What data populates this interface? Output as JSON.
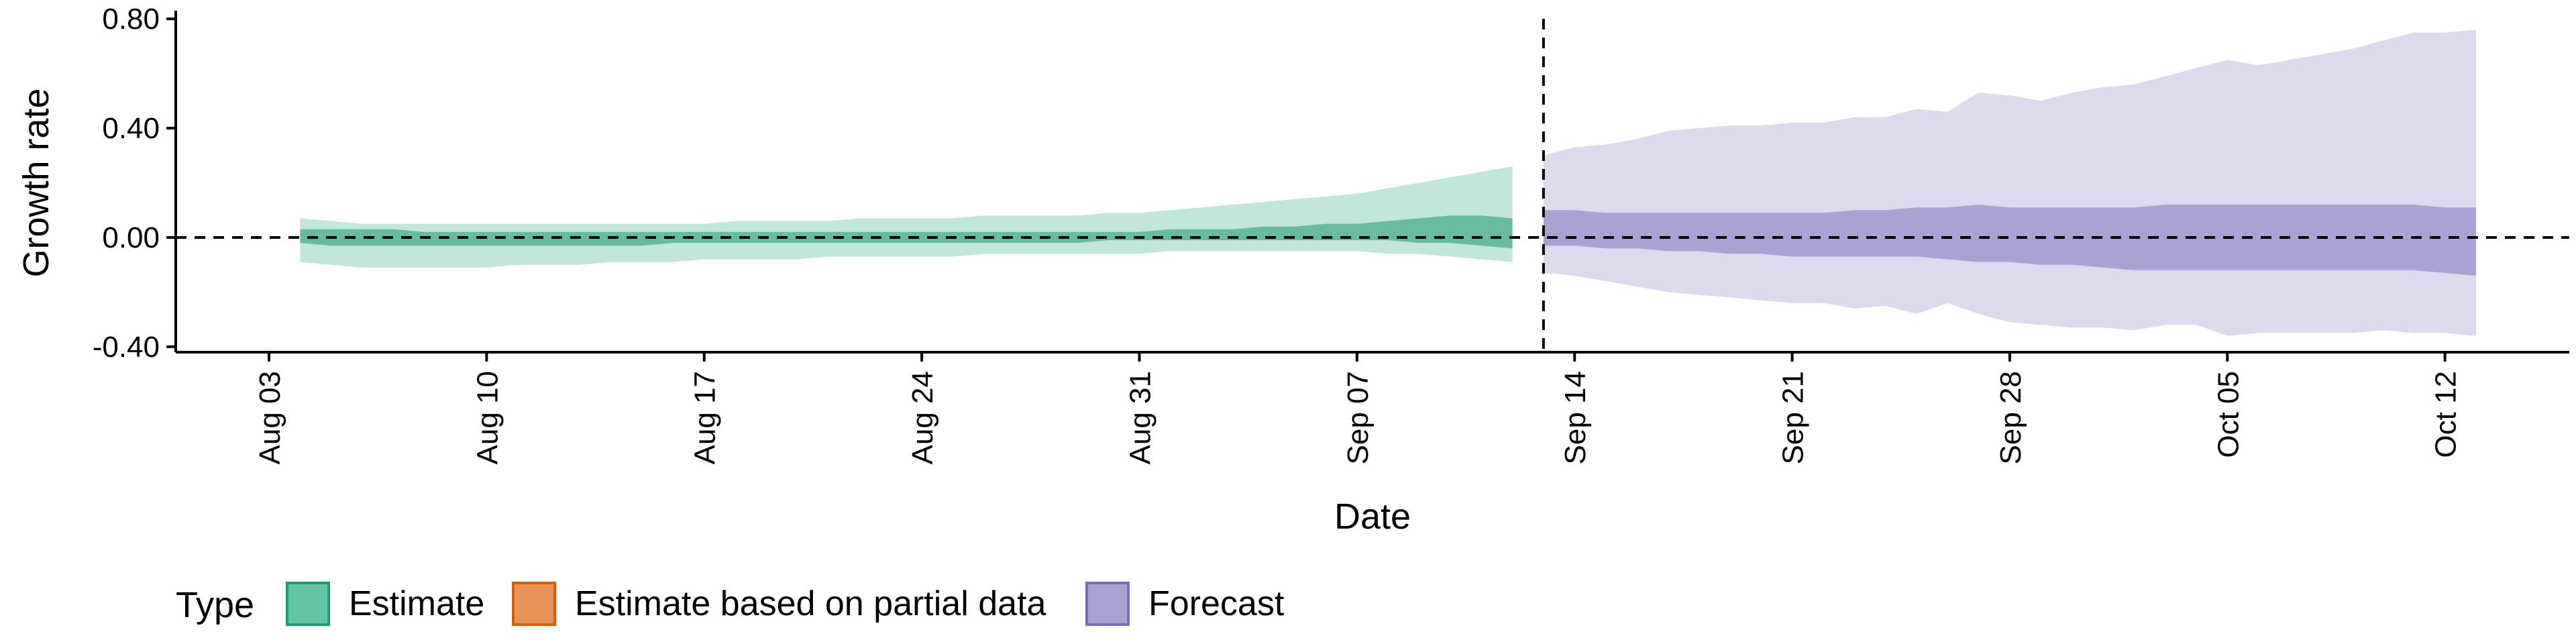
{
  "chart_data": {
    "type": "area",
    "xlabel": "Date",
    "ylabel": "Growth rate",
    "ylim": [
      -0.42,
      0.82
    ],
    "y_ticks": [
      -0.4,
      0.0,
      0.4,
      0.8
    ],
    "y_tick_labels": [
      "-0.40",
      "0.00",
      "0.40",
      "0.80"
    ],
    "x_ticks": [
      "2020-08-03",
      "2020-08-10",
      "2020-08-17",
      "2020-08-24",
      "2020-08-31",
      "2020-09-07",
      "2020-09-14",
      "2020-09-21",
      "2020-09-28",
      "2020-10-05",
      "2020-10-12"
    ],
    "x_tick_labels": [
      "Aug 03",
      "Aug 10",
      "Aug 17",
      "Aug 24",
      "Aug 31",
      "Sep 07",
      "Sep 14",
      "Sep 21",
      "Sep 28",
      "Oct 05",
      "Oct 12"
    ],
    "xlim": [
      "2020-07-31",
      "2020-10-16"
    ],
    "forecast_date": "2020-09-13",
    "reference_line_y": 0.0,
    "grid": false,
    "legend_position": "bottom",
    "legend_title": "Type",
    "legend": [
      {
        "label": "Estimate",
        "fill": "#66c2a5",
        "stroke": "#1b9e77"
      },
      {
        "label": "Estimate based on partial data",
        "fill": "#e8935a",
        "stroke": "#d95f02"
      },
      {
        "label": "Forecast",
        "fill": "#a8a2d3",
        "stroke": "#7570b3"
      }
    ],
    "series": [
      {
        "name": "Estimate",
        "color": "#1b9e77",
        "dates": [
          "2020-08-04",
          "2020-08-05",
          "2020-08-06",
          "2020-08-07",
          "2020-08-08",
          "2020-08-09",
          "2020-08-10",
          "2020-08-11",
          "2020-08-12",
          "2020-08-13",
          "2020-08-14",
          "2020-08-15",
          "2020-08-16",
          "2020-08-17",
          "2020-08-18",
          "2020-08-19",
          "2020-08-20",
          "2020-08-21",
          "2020-08-22",
          "2020-08-23",
          "2020-08-24",
          "2020-08-25",
          "2020-08-26",
          "2020-08-27",
          "2020-08-28",
          "2020-08-29",
          "2020-08-30",
          "2020-08-31",
          "2020-09-01",
          "2020-09-02",
          "2020-09-03",
          "2020-09-04",
          "2020-09-05",
          "2020-09-06",
          "2020-09-07",
          "2020-09-08",
          "2020-09-09",
          "2020-09-10",
          "2020-09-11",
          "2020-09-12"
        ],
        "lower_90": [
          -0.09,
          -0.1,
          -0.11,
          -0.11,
          -0.11,
          -0.11,
          -0.11,
          -0.1,
          -0.1,
          -0.1,
          -0.09,
          -0.09,
          -0.09,
          -0.08,
          -0.08,
          -0.08,
          -0.08,
          -0.07,
          -0.07,
          -0.07,
          -0.07,
          -0.07,
          -0.06,
          -0.06,
          -0.06,
          -0.06,
          -0.06,
          -0.06,
          -0.05,
          -0.05,
          -0.05,
          -0.05,
          -0.05,
          -0.05,
          -0.05,
          -0.06,
          -0.06,
          -0.07,
          -0.08,
          -0.09
        ],
        "upper_90": [
          0.07,
          0.06,
          0.05,
          0.05,
          0.05,
          0.05,
          0.05,
          0.05,
          0.05,
          0.05,
          0.05,
          0.05,
          0.05,
          0.05,
          0.06,
          0.06,
          0.06,
          0.06,
          0.07,
          0.07,
          0.07,
          0.07,
          0.08,
          0.08,
          0.08,
          0.08,
          0.09,
          0.09,
          0.1,
          0.11,
          0.12,
          0.13,
          0.14,
          0.15,
          0.16,
          0.18,
          0.2,
          0.22,
          0.24,
          0.26
        ],
        "lower_50": [
          -0.02,
          -0.03,
          -0.03,
          -0.03,
          -0.03,
          -0.03,
          -0.03,
          -0.03,
          -0.03,
          -0.03,
          -0.03,
          -0.03,
          -0.02,
          -0.02,
          -0.02,
          -0.02,
          -0.02,
          -0.02,
          -0.02,
          -0.02,
          -0.02,
          -0.02,
          -0.02,
          -0.02,
          -0.02,
          -0.02,
          -0.01,
          -0.01,
          -0.01,
          -0.01,
          -0.01,
          -0.01,
          -0.01,
          -0.01,
          -0.01,
          -0.01,
          -0.02,
          -0.02,
          -0.03,
          -0.04
        ],
        "upper_50": [
          0.03,
          0.03,
          0.03,
          0.03,
          0.02,
          0.02,
          0.02,
          0.02,
          0.02,
          0.02,
          0.02,
          0.02,
          0.02,
          0.02,
          0.02,
          0.02,
          0.02,
          0.02,
          0.02,
          0.02,
          0.02,
          0.02,
          0.02,
          0.02,
          0.02,
          0.02,
          0.02,
          0.02,
          0.03,
          0.03,
          0.03,
          0.04,
          0.04,
          0.05,
          0.05,
          0.06,
          0.07,
          0.08,
          0.08,
          0.07
        ]
      },
      {
        "name": "Forecast",
        "color": "#7570b3",
        "dates": [
          "2020-09-13",
          "2020-09-14",
          "2020-09-15",
          "2020-09-16",
          "2020-09-17",
          "2020-09-18",
          "2020-09-19",
          "2020-09-20",
          "2020-09-21",
          "2020-09-22",
          "2020-09-23",
          "2020-09-24",
          "2020-09-25",
          "2020-09-26",
          "2020-09-27",
          "2020-09-28",
          "2020-09-29",
          "2020-09-30",
          "2020-10-01",
          "2020-10-02",
          "2020-10-03",
          "2020-10-04",
          "2020-10-05",
          "2020-10-06",
          "2020-10-07",
          "2020-10-08",
          "2020-10-09",
          "2020-10-10",
          "2020-10-11",
          "2020-10-12",
          "2020-10-13"
        ],
        "lower_90": [
          -0.13,
          -0.14,
          -0.16,
          -0.18,
          -0.2,
          -0.21,
          -0.22,
          -0.23,
          -0.24,
          -0.24,
          -0.26,
          -0.25,
          -0.28,
          -0.24,
          -0.28,
          -0.31,
          -0.32,
          -0.33,
          -0.33,
          -0.34,
          -0.32,
          -0.32,
          -0.36,
          -0.35,
          -0.35,
          -0.35,
          -0.35,
          -0.34,
          -0.35,
          -0.35,
          -0.36
        ],
        "upper_90": [
          0.3,
          0.33,
          0.34,
          0.36,
          0.39,
          0.4,
          0.41,
          0.41,
          0.42,
          0.42,
          0.44,
          0.44,
          0.47,
          0.46,
          0.53,
          0.52,
          0.5,
          0.53,
          0.55,
          0.56,
          0.59,
          0.62,
          0.65,
          0.63,
          0.65,
          0.67,
          0.69,
          0.72,
          0.75,
          0.75,
          0.76
        ],
        "lower_50": [
          -0.03,
          -0.03,
          -0.04,
          -0.04,
          -0.05,
          -0.05,
          -0.06,
          -0.06,
          -0.07,
          -0.07,
          -0.07,
          -0.07,
          -0.07,
          -0.08,
          -0.09,
          -0.09,
          -0.1,
          -0.1,
          -0.11,
          -0.12,
          -0.12,
          -0.12,
          -0.12,
          -0.12,
          -0.12,
          -0.12,
          -0.12,
          -0.12,
          -0.12,
          -0.13,
          -0.14
        ],
        "upper_50": [
          0.1,
          0.1,
          0.09,
          0.09,
          0.09,
          0.09,
          0.09,
          0.09,
          0.09,
          0.09,
          0.1,
          0.1,
          0.11,
          0.11,
          0.12,
          0.11,
          0.11,
          0.11,
          0.11,
          0.11,
          0.12,
          0.12,
          0.12,
          0.12,
          0.12,
          0.12,
          0.12,
          0.12,
          0.12,
          0.11,
          0.11
        ]
      }
    ]
  }
}
